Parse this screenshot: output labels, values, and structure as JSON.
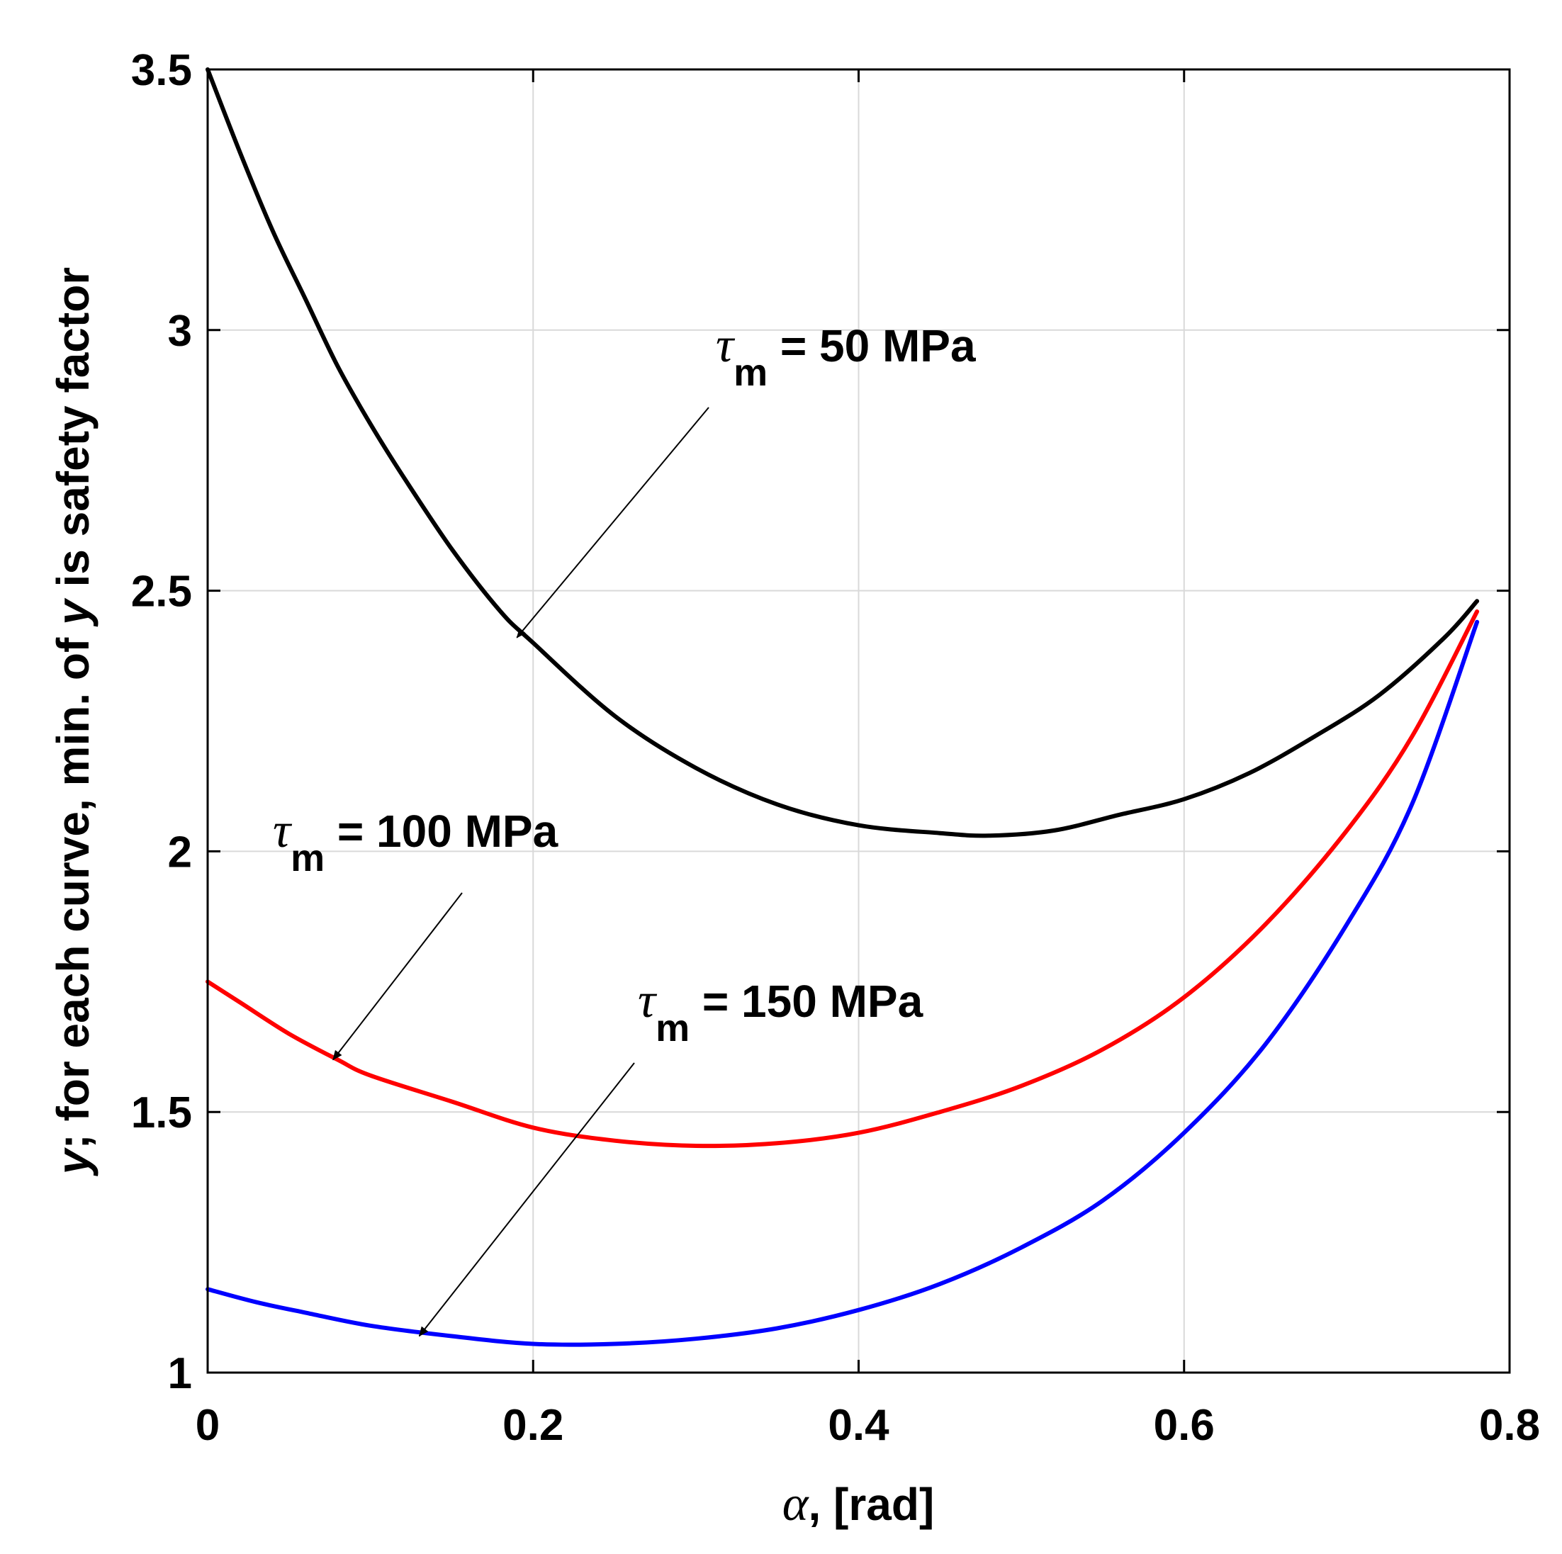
{
  "chart_data": {
    "type": "line",
    "title": "",
    "xlabel_symbol": "α",
    "xlabel_rest": ", [rad]",
    "ylabel_parts": [
      "y",
      "; for each curve, min. of ",
      "y",
      " is safety factor"
    ],
    "xlim": [
      0,
      0.8
    ],
    "ylim": [
      1,
      3.5
    ],
    "xticks": [
      0,
      0.2,
      0.4,
      0.6,
      0.8
    ],
    "xtick_labels": [
      "0",
      "0.2",
      "0.4",
      "0.6",
      "0.8"
    ],
    "yticks": [
      1,
      1.5,
      2,
      2.5,
      3,
      3.5
    ],
    "ytick_labels": [
      "1",
      "1.5",
      "2",
      "2.5",
      "3",
      "3.5"
    ],
    "grid": true,
    "series": [
      {
        "name": "τm = 50 MPa",
        "color": "#000000",
        "x": [
          0,
          0.02,
          0.04,
          0.06,
          0.08,
          0.1,
          0.12,
          0.15,
          0.18,
          0.2,
          0.25,
          0.3,
          0.35,
          0.4,
          0.45,
          0.48,
          0.52,
          0.56,
          0.6,
          0.64,
          0.68,
          0.72,
          0.76,
          0.78
        ],
        "y": [
          3.5,
          3.34,
          3.19,
          3.06,
          2.93,
          2.82,
          2.72,
          2.58,
          2.46,
          2.4,
          2.26,
          2.16,
          2.09,
          2.05,
          2.035,
          2.03,
          2.04,
          2.07,
          2.1,
          2.15,
          2.22,
          2.3,
          2.41,
          2.48
        ]
      },
      {
        "name": "τm = 100 MPa",
        "color": "#ff0000",
        "x": [
          0,
          0.02,
          0.05,
          0.08,
          0.1,
          0.15,
          0.2,
          0.25,
          0.3,
          0.35,
          0.4,
          0.45,
          0.5,
          0.55,
          0.6,
          0.65,
          0.7,
          0.74,
          0.78
        ],
        "y": [
          1.75,
          1.71,
          1.65,
          1.6,
          1.57,
          1.52,
          1.47,
          1.445,
          1.435,
          1.44,
          1.46,
          1.5,
          1.55,
          1.62,
          1.72,
          1.86,
          2.04,
          2.22,
          2.46
        ]
      },
      {
        "name": "τm = 150 MPa",
        "color": "#0000ff",
        "x": [
          0,
          0.03,
          0.06,
          0.1,
          0.15,
          0.2,
          0.25,
          0.3,
          0.35,
          0.4,
          0.45,
          0.5,
          0.55,
          0.6,
          0.65,
          0.7,
          0.74,
          0.78
        ],
        "y": [
          1.16,
          1.135,
          1.115,
          1.09,
          1.07,
          1.055,
          1.055,
          1.065,
          1.085,
          1.12,
          1.17,
          1.24,
          1.33,
          1.46,
          1.63,
          1.86,
          2.09,
          2.44
        ]
      }
    ],
    "annotations": [
      {
        "symbol": "τ",
        "subscript": "m",
        "rest": " = 50 MPa",
        "arrow_to": [
          0.19,
          2.41
        ]
      },
      {
        "symbol": "τ",
        "subscript": "m",
        "rest": " = 100 MPa",
        "arrow_to": [
          0.077,
          1.6
        ]
      },
      {
        "symbol": "τ",
        "subscript": "m",
        "rest": " = 150 MPa",
        "arrow_to": [
          0.13,
          1.07
        ]
      }
    ]
  }
}
